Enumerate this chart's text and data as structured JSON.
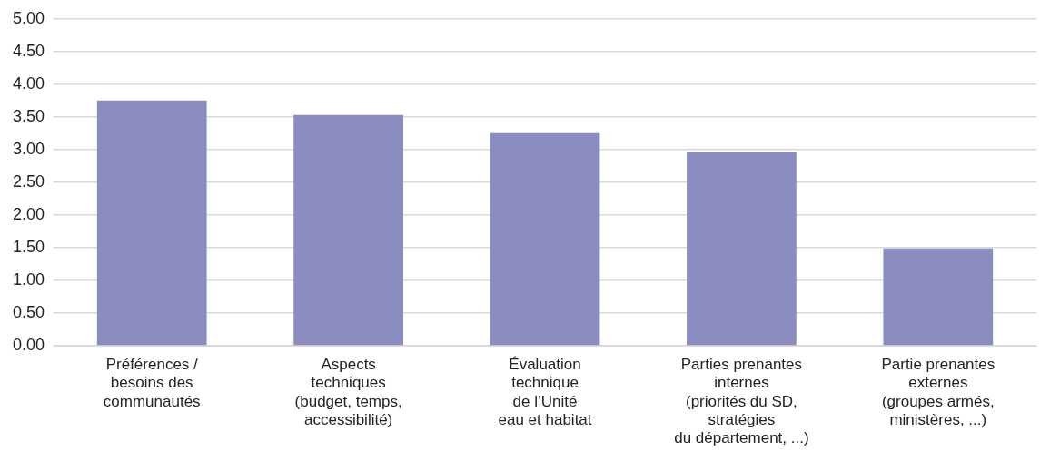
{
  "chart_data": {
    "type": "bar",
    "categories": [
      "Préférences /\nbesoins des\ncommunautés",
      "Aspects\ntechniques\n(budget, temps,\naccessibilité)",
      "Évaluation\ntechnique\nde l’Unité\neau et habitat",
      "Parties prenantes\ninternes\n(priorités du SD,\nstratégies\ndu département, ...)",
      "Partie prenantes\nexternes\n(groupes armés,\nministères, ...)"
    ],
    "values": [
      3.75,
      3.53,
      3.25,
      2.96,
      1.49
    ],
    "color": "#8b8dc1",
    "ylim": [
      0,
      5
    ],
    "yticks": [
      {
        "value": 0,
        "label": "0.00"
      },
      {
        "value": 0.5,
        "label": "0.50"
      },
      {
        "value": 1,
        "label": "1.00"
      },
      {
        "value": 1.5,
        "label": "1.50"
      },
      {
        "value": 2,
        "label": "2.00"
      },
      {
        "value": 2.5,
        "label": "2.50"
      },
      {
        "value": 3,
        "label": "3.00"
      },
      {
        "value": 3.5,
        "label": "3.50"
      },
      {
        "value": 4,
        "label": "4.00"
      },
      {
        "value": 4.5,
        "label": "4.50"
      },
      {
        "value": 5,
        "label": "5.00"
      }
    ],
    "grid": "y"
  }
}
